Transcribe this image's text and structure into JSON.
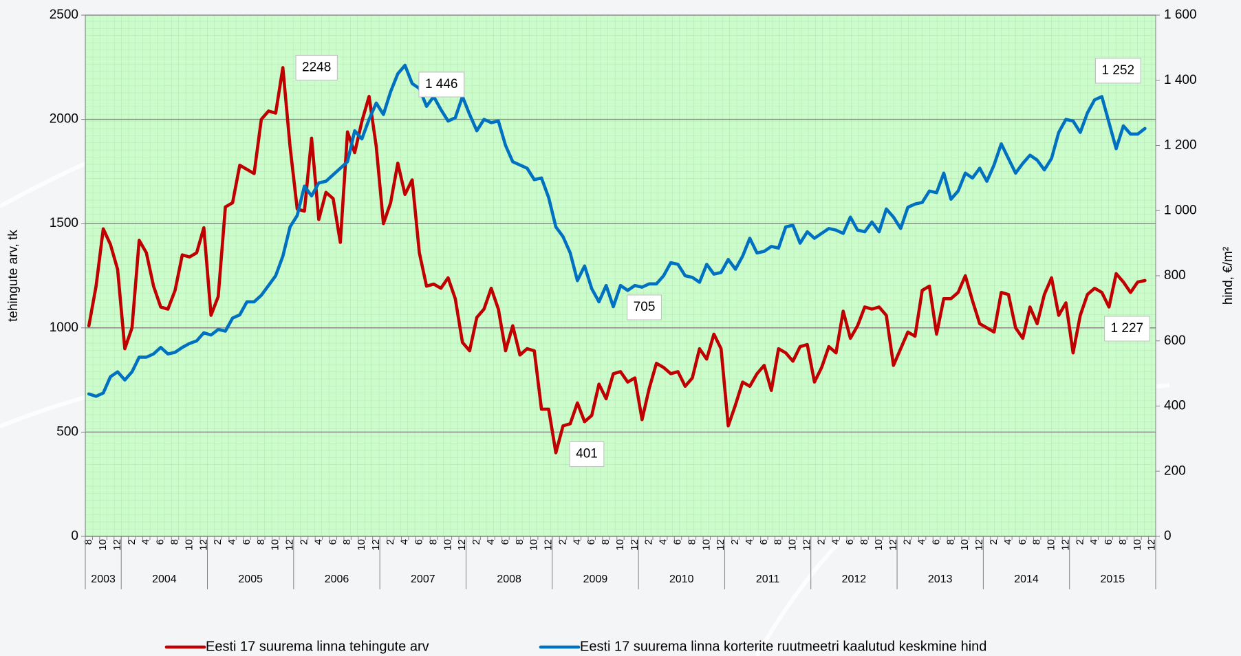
{
  "chart_data": {
    "type": "line",
    "y_label": "tehingute arv, tk",
    "y2_label": "hind, €/m²",
    "categories": [
      "8",
      null,
      "10",
      null,
      "12",
      null,
      "2",
      null,
      "4",
      null,
      "6",
      null,
      "8",
      null,
      "10",
      null,
      "12",
      null,
      "2",
      null,
      "4",
      null,
      "6",
      null,
      "8",
      null,
      "10",
      null,
      "12",
      null,
      "2",
      null,
      "4",
      null,
      "6",
      null,
      "8",
      null,
      "10",
      null,
      "12",
      null,
      "2",
      null,
      "4",
      null,
      "6",
      null,
      "8",
      null,
      "10",
      null,
      "12",
      null,
      "2",
      null,
      "4",
      null,
      "6",
      null,
      "8",
      null,
      "10",
      null,
      "12",
      null,
      "2",
      null,
      "4",
      null,
      "6",
      null,
      "8",
      null,
      "10",
      null,
      "12",
      null,
      "2",
      null,
      "4",
      null,
      "6",
      null,
      "8",
      null,
      "10",
      null,
      "12",
      null,
      "2",
      null,
      "4",
      null,
      "6",
      null,
      "8",
      null,
      "10",
      null,
      "12",
      null,
      "2",
      null,
      "4",
      null,
      "6",
      null,
      "8",
      null,
      "10",
      null,
      "12",
      null,
      "2",
      null,
      "4",
      null,
      "6",
      null,
      "8",
      null,
      "10",
      null,
      "12",
      null,
      "2",
      null,
      "4",
      null,
      "6",
      null,
      "8",
      null,
      "10",
      null,
      "12",
      null,
      "2",
      null,
      "4",
      null,
      "6",
      null,
      "8",
      null,
      "10",
      null,
      "12"
    ],
    "groups": [
      {
        "label": "2003",
        "span": 5
      },
      {
        "label": "2004",
        "span": 12
      },
      {
        "label": "2005",
        "span": 12
      },
      {
        "label": "2006",
        "span": 12
      },
      {
        "label": "2007",
        "span": 12
      },
      {
        "label": "2008",
        "span": 12
      },
      {
        "label": "2009",
        "span": 12
      },
      {
        "label": "2010",
        "span": 12
      },
      {
        "label": "2011",
        "span": 12
      },
      {
        "label": "2012",
        "span": 12
      },
      {
        "label": "2013",
        "span": 12
      },
      {
        "label": "2014",
        "span": 12
      },
      {
        "label": "2015",
        "span": 12
      }
    ],
    "series": [
      {
        "name": "Eesti 17 suurema linna tehingute arv",
        "color": "#c00000",
        "axis": "y",
        "values": [
          1010,
          1200,
          1475,
          1400,
          1280,
          900,
          1000,
          1420,
          1360,
          1200,
          1100,
          1090,
          1180,
          1350,
          1340,
          1360,
          1480,
          1060,
          1150,
          1580,
          1600,
          1780,
          1760,
          1740,
          2000,
          2040,
          2030,
          2248,
          1870,
          1570,
          1560,
          1910,
          1520,
          1650,
          1620,
          1410,
          1940,
          1840,
          1990,
          2110,
          1870,
          1500,
          1600,
          1790,
          1640,
          1710,
          1360,
          1200,
          1210,
          1190,
          1240,
          1140,
          930,
          890,
          1050,
          1090,
          1190,
          1090,
          890,
          1010,
          870,
          900,
          890,
          610,
          610,
          401,
          530,
          540,
          640,
          550,
          580,
          730,
          660,
          780,
          790,
          740,
          760,
          560,
          710,
          830,
          810,
          780,
          790,
          720,
          760,
          900,
          850,
          970,
          900,
          530,
          630,
          740,
          720,
          780,
          820,
          700,
          900,
          880,
          840,
          910,
          920,
          740,
          810,
          910,
          880,
          1080,
          950,
          1010,
          1100,
          1090,
          1100,
          1060,
          820,
          900,
          980,
          960,
          1180,
          1200,
          970,
          1140,
          1140,
          1170,
          1250,
          1130,
          1020,
          1000,
          980,
          1170,
          1160,
          1000,
          950,
          1100,
          1020,
          1160,
          1240,
          1060,
          1120,
          880,
          1060,
          1160,
          1190,
          1170,
          1100,
          1260,
          1220,
          1170,
          1220,
          1227,
          null
        ]
      },
      {
        "name": "Eesti 17 suurema linna korterite ruutmeetri kaalutud keskmine hind",
        "color": "#0070c0",
        "axis": "y2",
        "values": [
          437,
          430,
          440,
          490,
          505,
          480,
          505,
          550,
          550,
          560,
          580,
          560,
          565,
          580,
          592,
          600,
          625,
          618,
          635,
          630,
          670,
          680,
          720,
          720,
          740,
          770,
          800,
          860,
          950,
          985,
          1075,
          1045,
          1085,
          1090,
          1110,
          1130,
          1150,
          1245,
          1220,
          1280,
          1330,
          1295,
          1365,
          1420,
          1446,
          1390,
          1375,
          1320,
          1350,
          1310,
          1275,
          1285,
          1350,
          1295,
          1245,
          1280,
          1270,
          1275,
          1200,
          1150,
          1140,
          1130,
          1095,
          1100,
          1040,
          950,
          920,
          870,
          785,
          830,
          760,
          720,
          770,
          705,
          770,
          755,
          770,
          765,
          775,
          775,
          800,
          840,
          835,
          800,
          795,
          780,
          835,
          805,
          810,
          850,
          820,
          860,
          915,
          870,
          875,
          890,
          885,
          950,
          955,
          900,
          935,
          915,
          930,
          945,
          940,
          930,
          980,
          940,
          935,
          965,
          935,
          1005,
          980,
          945,
          1010,
          1020,
          1025,
          1060,
          1055,
          1115,
          1035,
          1060,
          1115,
          1100,
          1130,
          1090,
          1140,
          1205,
          1160,
          1115,
          1145,
          1170,
          1155,
          1125,
          1160,
          1240,
          1280,
          1275,
          1240,
          1300,
          1340,
          1350,
          1270,
          1190,
          1260,
          1235,
          1235,
          1252,
          null
        ]
      }
    ],
    "annotations": [
      {
        "text": "2248",
        "series": 0,
        "index": 27
      },
      {
        "text": "1 446",
        "series": 1,
        "index": 44
      },
      {
        "text": "401",
        "series": 0,
        "index": 65
      },
      {
        "text": "705",
        "series": 1,
        "index": 73
      },
      {
        "text": "1 252",
        "series": 1,
        "index": 147
      },
      {
        "text": "1 227",
        "series": 0,
        "index": 147
      }
    ],
    "ylim": [
      0,
      2500
    ],
    "yticks": [
      0,
      500,
      1000,
      1500,
      2000,
      2500
    ],
    "y2lim": [
      0,
      1600
    ],
    "y2ticks": [
      0,
      200,
      400,
      600,
      800,
      {
        "value": 1000,
        "label": "1 000"
      },
      {
        "value": 1200,
        "label": "1 200"
      },
      {
        "value": 1400,
        "label": "1 400"
      },
      {
        "value": 1600,
        "label": "1 600"
      }
    ],
    "grid": true,
    "legend": "bottom"
  }
}
